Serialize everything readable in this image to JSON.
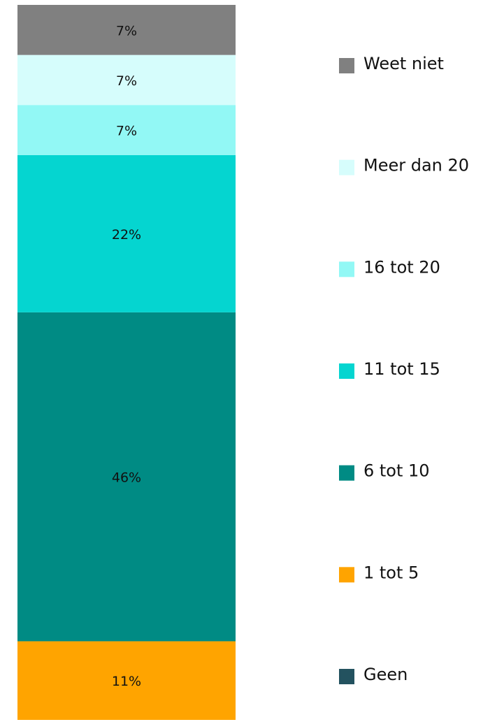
{
  "chart_data": {
    "type": "stacked_bar",
    "ylim": [
      0,
      100
    ],
    "series": [
      {
        "name": "Geen",
        "color": "#23525f",
        "values": [
          0
        ]
      },
      {
        "name": "1 tot 5",
        "color": "#ffa400",
        "values": [
          11
        ],
        "value_labels": [
          "11%"
        ]
      },
      {
        "name": "6 tot 10",
        "color": "#008b84",
        "values": [
          46
        ],
        "value_labels": [
          "46%"
        ]
      },
      {
        "name": "11 tot 15",
        "color": "#05d5d0",
        "values": [
          22
        ],
        "value_labels": [
          "22%"
        ]
      },
      {
        "name": "16 tot 20",
        "color": "#92f8f5",
        "values": [
          7
        ],
        "value_labels": [
          "7%"
        ]
      },
      {
        "name": "Meer dan 20",
        "color": "#d6fdfc",
        "values": [
          7
        ],
        "value_labels": [
          "7%"
        ]
      },
      {
        "name": "Weet niet",
        "color": "#808080",
        "values": [
          7
        ],
        "value_labels": [
          "7%"
        ]
      }
    ]
  }
}
